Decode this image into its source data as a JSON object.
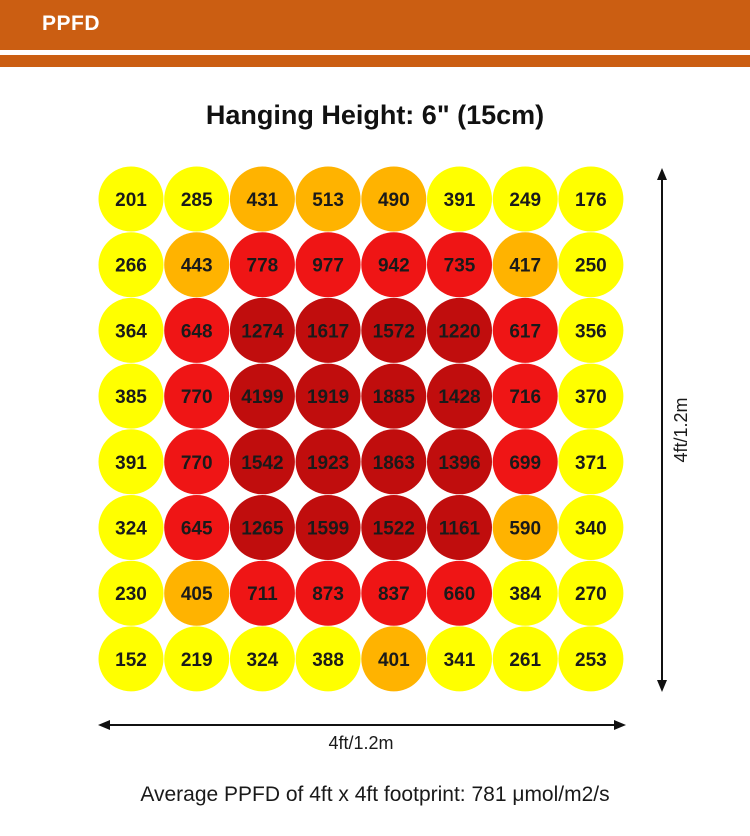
{
  "header": {
    "title": "PPFD",
    "color": "#cb5e12"
  },
  "chart_data": {
    "type": "heatmap",
    "title": "Hanging Height: 6\" (15cm)",
    "xlabel": "4ft/1.2m",
    "ylabel": "4ft/1.2m",
    "grid": false,
    "color_scale": [
      {
        "min": 0,
        "max": 399,
        "color": "#ffff00"
      },
      {
        "min": 400,
        "max": 599,
        "color": "#ffb300"
      },
      {
        "min": 600,
        "max": 999,
        "color": "#ef1515"
      },
      {
        "min": 1000,
        "max": 100000,
        "color": "#c00d0d"
      }
    ],
    "values": [
      [
        201,
        285,
        431,
        513,
        490,
        391,
        249,
        176
      ],
      [
        266,
        443,
        778,
        977,
        942,
        735,
        417,
        250
      ],
      [
        364,
        648,
        1274,
        1617,
        1572,
        1220,
        617,
        356
      ],
      [
        385,
        770,
        4199,
        1919,
        1885,
        1428,
        716,
        370
      ],
      [
        391,
        770,
        1542,
        1923,
        1863,
        1396,
        699,
        371
      ],
      [
        324,
        645,
        1265,
        1599,
        1522,
        1161,
        590,
        340
      ],
      [
        230,
        405,
        711,
        873,
        837,
        660,
        384,
        270
      ],
      [
        152,
        219,
        324,
        388,
        401,
        341,
        261,
        253
      ]
    ]
  },
  "footer": {
    "text": "Average PPFD of 4ft x 4ft footprint: 781 μmol/m2/s"
  }
}
